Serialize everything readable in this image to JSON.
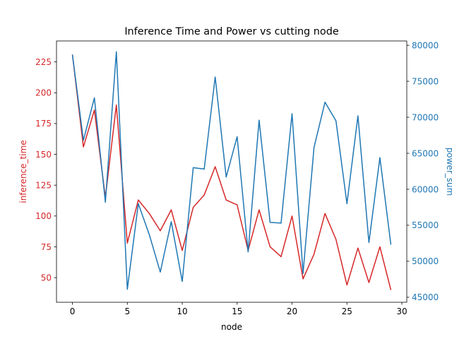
{
  "chart_data": {
    "type": "line",
    "title": "Inference Time and Power vs cutting node",
    "xlabel": "node",
    "ylabel_left": "inference_time",
    "ylabel_right": "power_sum",
    "xlim": [
      -1.45,
      30.45
    ],
    "ylim_left": [
      30,
      242
    ],
    "ylim_right": [
      44300,
      80600
    ],
    "x_ticks": [
      0,
      5,
      10,
      15,
      20,
      25,
      30
    ],
    "y_ticks_left": [
      50,
      75,
      100,
      125,
      150,
      175,
      200,
      225
    ],
    "y_ticks_right": [
      45000,
      50000,
      55000,
      60000,
      65000,
      70000,
      75000,
      80000
    ],
    "colors": {
      "left": "#d62728",
      "right": "#1f77b4"
    },
    "x": [
      0,
      1,
      2,
      3,
      4,
      5,
      6,
      7,
      8,
      9,
      10,
      11,
      12,
      13,
      14,
      15,
      16,
      17,
      18,
      19,
      20,
      21,
      22,
      23,
      24,
      25,
      26,
      27,
      28,
      29
    ],
    "series": [
      {
        "name": "inference_time",
        "axis": "left",
        "values": [
          231,
          156,
          186,
          115,
          190,
          78,
          113,
          102,
          88,
          105,
          72,
          107,
          117,
          140,
          113,
          109,
          72,
          105,
          75,
          67,
          100,
          49,
          69,
          102,
          81,
          44,
          74,
          46,
          75,
          40
        ]
      },
      {
        "name": "power_sum",
        "axis": "right",
        "values": [
          78700,
          66800,
          72700,
          58200,
          79100,
          46100,
          58000,
          53700,
          48500,
          55500,
          47200,
          63000,
          62800,
          75600,
          61700,
          67300,
          51300,
          69600,
          55400,
          55300,
          70500,
          48300,
          65800,
          72100,
          69500,
          58000,
          70200,
          52600,
          64400,
          52300
        ]
      }
    ]
  }
}
